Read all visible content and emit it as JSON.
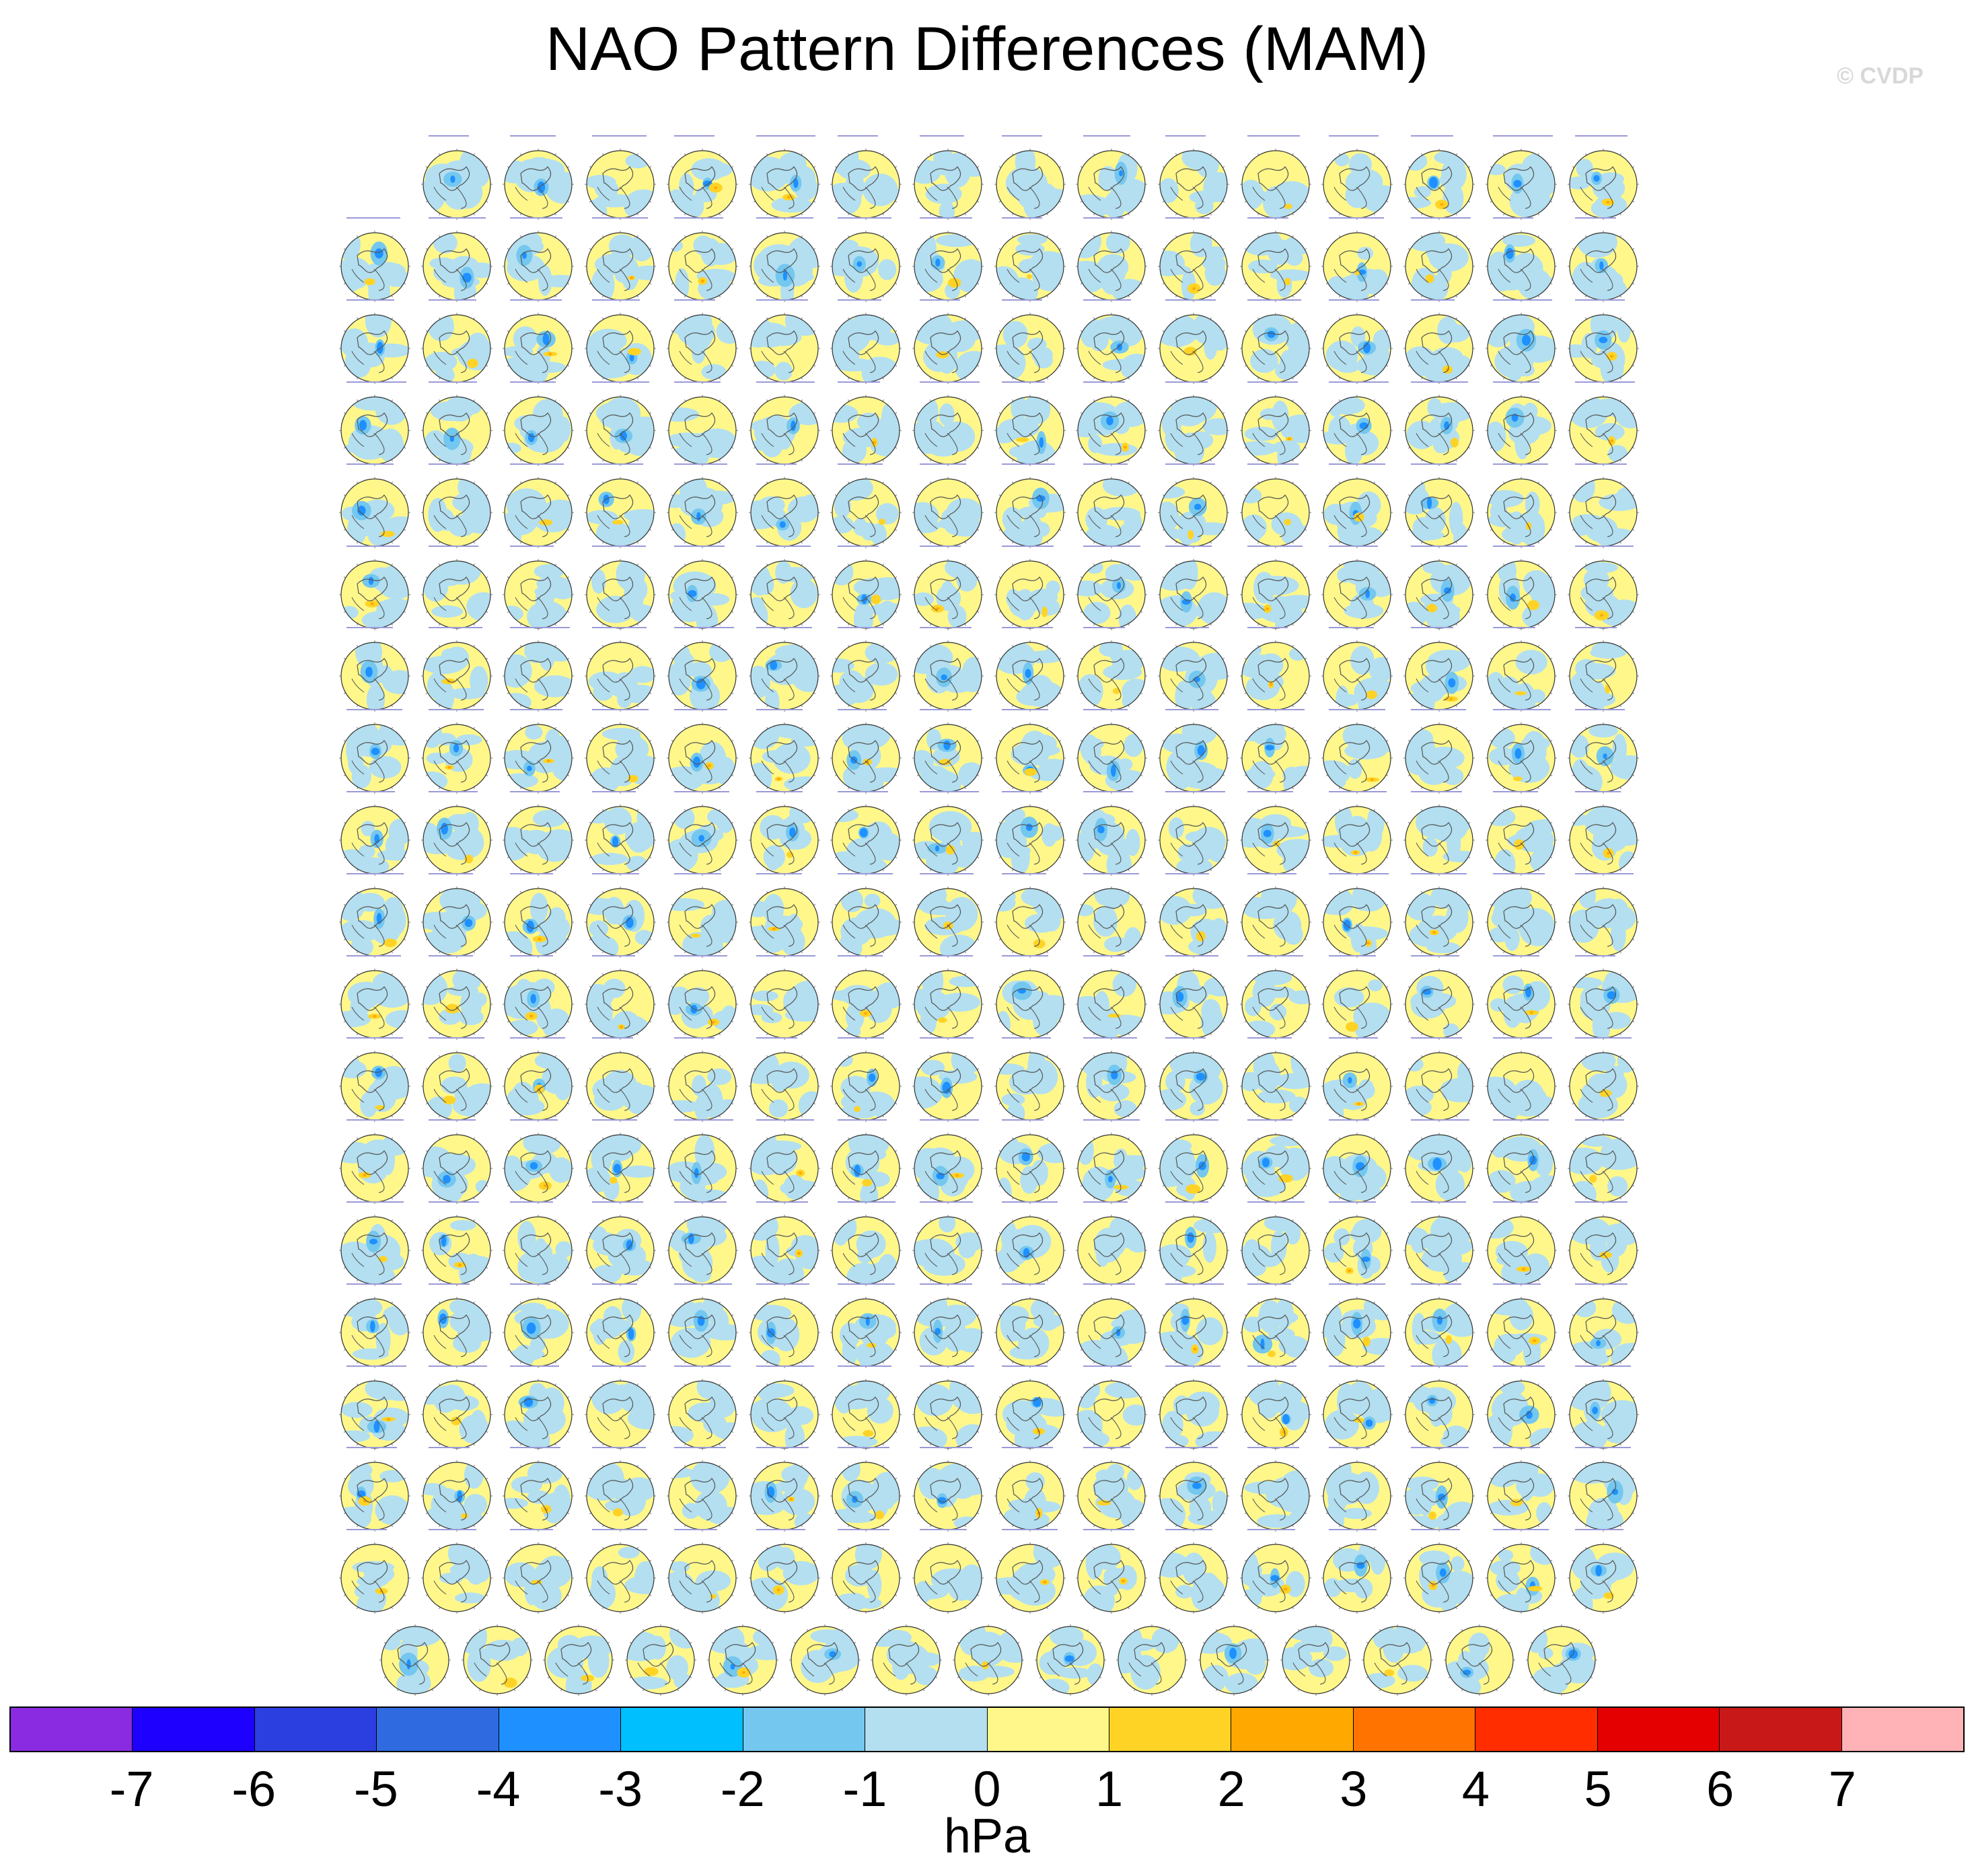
{
  "title": "NAO Pattern Differences (MAM)",
  "copyright": "© CVDP",
  "panels": {
    "rows": 19,
    "map_projection": "north polar stereographic",
    "colors": {
      "land_outline": "#555555",
      "ocean_light": "#b3dff0",
      "positive": "#fff78a"
    }
  },
  "colorbar": {
    "colors": [
      "#8a2be2",
      "#1e00ff",
      "#2b3fe0",
      "#2f6ae0",
      "#1e90ff",
      "#00bfff",
      "#74c7ef",
      "#b3dff0",
      "#fff78a",
      "#ffd326",
      "#ffa800",
      "#ff7400",
      "#ff2d00",
      "#e40000",
      "#c91818",
      "#ffb3b7"
    ],
    "labels": [
      "-7",
      "-6",
      "-5",
      "-4",
      "-3",
      "-2",
      "-1",
      "0",
      "1",
      "2",
      "3",
      "4",
      "5",
      "6",
      "7"
    ],
    "units": "hPa"
  }
}
